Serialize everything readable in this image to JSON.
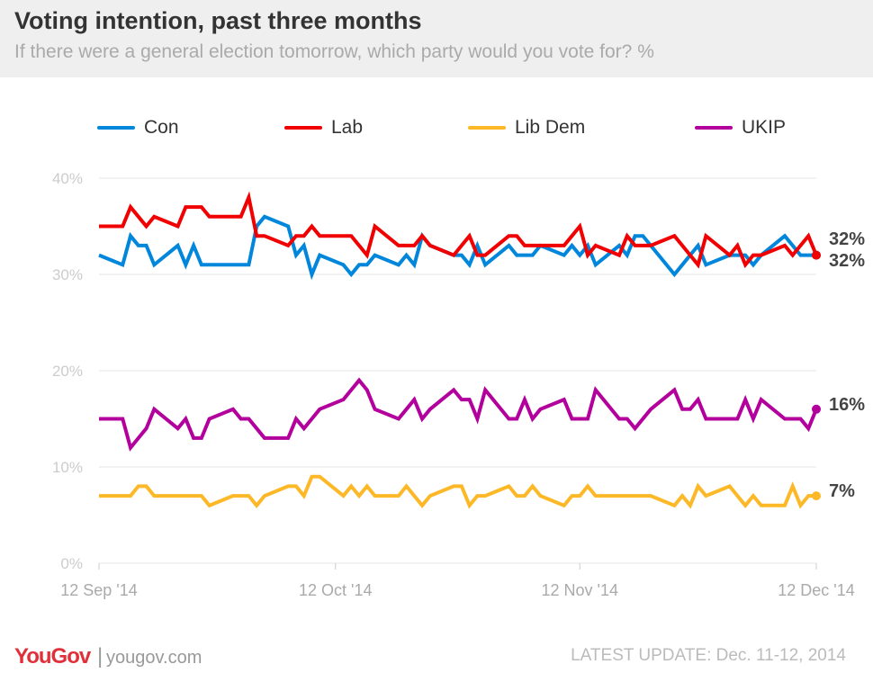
{
  "header": {
    "title": "Voting intention, past three months",
    "subtitle": "If there were a general election tomorrow, which party would you vote for? %"
  },
  "footer": {
    "logo": "YouGov",
    "separator": "|",
    "site": "yougov.com",
    "update": "LATEST UPDATE: Dec. 11-12, 2014"
  },
  "chart_data": {
    "type": "line",
    "title": "Voting intention, past three months",
    "subtitle": "If there were a general election tomorrow, which party would you vote for? %",
    "ylim": [
      0,
      40
    ],
    "yticks": [
      "0%",
      "10%",
      "20%",
      "30%",
      "40%"
    ],
    "ytick_values": [
      0,
      10,
      20,
      30,
      40
    ],
    "xlim": [
      "2014-09-12",
      "2014-12-12"
    ],
    "xticks": [
      "12 Sep '14",
      "12 Oct '14",
      "12 Nov '14",
      "12 Dec '14"
    ],
    "xtick_dates": [
      "2014-09-12",
      "2014-10-12",
      "2014-11-12",
      "2014-12-12"
    ],
    "grid": "horizontal",
    "legend": "top",
    "x": [
      "2014-09-12",
      "2014-09-15",
      "2014-09-16",
      "2014-09-17",
      "2014-09-18",
      "2014-09-19",
      "2014-09-22",
      "2014-09-23",
      "2014-09-24",
      "2014-09-25",
      "2014-09-26",
      "2014-09-29",
      "2014-09-30",
      "2014-10-01",
      "2014-10-02",
      "2014-10-03",
      "2014-10-06",
      "2014-10-07",
      "2014-10-08",
      "2014-10-09",
      "2014-10-10",
      "2014-10-13",
      "2014-10-14",
      "2014-10-15",
      "2014-10-16",
      "2014-10-17",
      "2014-10-20",
      "2014-10-21",
      "2014-10-22",
      "2014-10-23",
      "2014-10-24",
      "2014-10-27",
      "2014-10-28",
      "2014-10-29",
      "2014-10-30",
      "2014-10-31",
      "2014-11-03",
      "2014-11-04",
      "2014-11-05",
      "2014-11-06",
      "2014-11-07",
      "2014-11-10",
      "2014-11-11",
      "2014-11-12",
      "2014-11-13",
      "2014-11-14",
      "2014-11-17",
      "2014-11-18",
      "2014-11-19",
      "2014-11-20",
      "2014-11-21",
      "2014-11-24",
      "2014-11-25",
      "2014-11-26",
      "2014-11-27",
      "2014-11-28",
      "2014-12-01",
      "2014-12-02",
      "2014-12-03",
      "2014-12-04",
      "2014-12-05",
      "2014-12-08",
      "2014-12-09",
      "2014-12-10",
      "2014-12-11",
      "2014-12-12"
    ],
    "series": [
      {
        "name": "Con",
        "color": "#0087dc",
        "end_label": "32%",
        "values": [
          32,
          31,
          34,
          33,
          33,
          31,
          33,
          31,
          33,
          31,
          31,
          31,
          31,
          31,
          35,
          36,
          35,
          32,
          33,
          30,
          32,
          31,
          30,
          31,
          31,
          32,
          31,
          32,
          31,
          34,
          33,
          32,
          32,
          31,
          33,
          31,
          33,
          32,
          32,
          32,
          33,
          32,
          33,
          32,
          33,
          31,
          33,
          32,
          34,
          34,
          33,
          30,
          31,
          32,
          33,
          31,
          32,
          32,
          32,
          31,
          32,
          34,
          33,
          32,
          32,
          32
        ]
      },
      {
        "name": "Lab",
        "color": "#f00000",
        "end_label": "32%",
        "values": [
          35,
          35,
          37,
          36,
          35,
          36,
          35,
          37,
          37,
          37,
          36,
          36,
          36,
          38,
          34,
          34,
          33,
          34,
          34,
          35,
          34,
          34,
          34,
          33,
          32,
          35,
          33,
          33,
          33,
          34,
          33,
          32,
          33,
          34,
          32,
          32,
          34,
          34,
          33,
          33,
          33,
          33,
          34,
          35,
          32,
          33,
          32,
          34,
          33,
          33,
          33,
          34,
          33,
          32,
          31,
          34,
          32,
          33,
          31,
          32,
          32,
          33,
          32,
          33,
          34,
          32
        ]
      },
      {
        "name": "Lib Dem",
        "color": "#fdb827",
        "end_label": "7%",
        "values": [
          7,
          7,
          7,
          8,
          8,
          7,
          7,
          7,
          7,
          7,
          6,
          7,
          7,
          7,
          6,
          7,
          8,
          8,
          7,
          9,
          9,
          7,
          8,
          7,
          8,
          7,
          7,
          8,
          7,
          6,
          7,
          8,
          8,
          6,
          7,
          7,
          8,
          7,
          7,
          8,
          7,
          6,
          7,
          7,
          8,
          7,
          7,
          7,
          7,
          7,
          7,
          6,
          7,
          6,
          8,
          7,
          8,
          7,
          6,
          7,
          6,
          6,
          8,
          6,
          7,
          7
        ]
      },
      {
        "name": "UKIP",
        "color": "#b3009d",
        "end_label": "16%",
        "values": [
          15,
          15,
          12,
          13,
          14,
          16,
          14,
          15,
          13,
          13,
          15,
          16,
          15,
          15,
          14,
          13,
          13,
          15,
          14,
          15,
          16,
          17,
          18,
          19,
          18,
          16,
          15,
          16,
          17,
          15,
          16,
          18,
          17,
          17,
          15,
          18,
          15,
          15,
          17,
          15,
          16,
          17,
          15,
          15,
          15,
          18,
          15,
          15,
          14,
          15,
          16,
          18,
          16,
          16,
          17,
          15,
          15,
          15,
          17,
          15,
          17,
          15,
          15,
          15,
          14,
          16
        ]
      }
    ]
  }
}
